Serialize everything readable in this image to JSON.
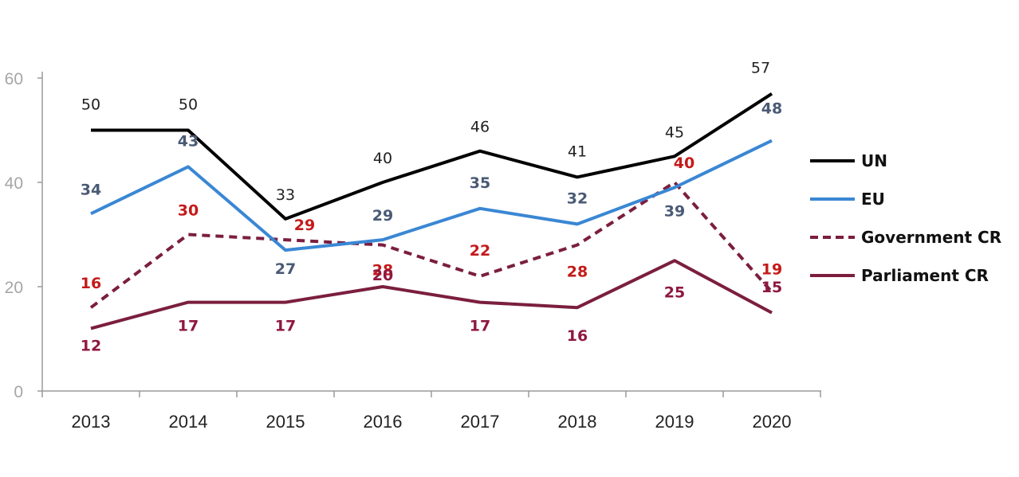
{
  "chart_data": {
    "type": "line",
    "categories": [
      "2013",
      "2014",
      "2015",
      "2016",
      "2017",
      "2018",
      "2019",
      "2020"
    ],
    "ylim": [
      0,
      60
    ],
    "yticks": [
      "0",
      "20",
      "40",
      "60"
    ],
    "grid": false,
    "legend_placement": "right",
    "series": [
      {
        "name": "UN",
        "values": [
          50,
          50,
          33,
          40,
          46,
          41,
          45,
          57
        ],
        "color": "#000000",
        "dash": false,
        "label_color": "#222222",
        "label_weight": "normal"
      },
      {
        "name": "EU",
        "values": [
          34,
          43,
          27,
          29,
          35,
          32,
          39,
          48
        ],
        "color": "#3a87d4",
        "dash": false,
        "label_color": "#4a5a75",
        "label_weight": "bold"
      },
      {
        "name": "Government CR",
        "values": [
          16,
          30,
          29,
          28,
          22,
          28,
          40,
          19
        ],
        "color": "#7b1e3f",
        "dash": true,
        "label_color": "#c41a1a",
        "label_weight": "bold"
      },
      {
        "name": "Parliament CR",
        "values": [
          12,
          17,
          17,
          20,
          17,
          16,
          25,
          15
        ],
        "color": "#7b1e3f",
        "dash": false,
        "label_color": "#8e1840",
        "label_weight": "bold"
      }
    ]
  }
}
